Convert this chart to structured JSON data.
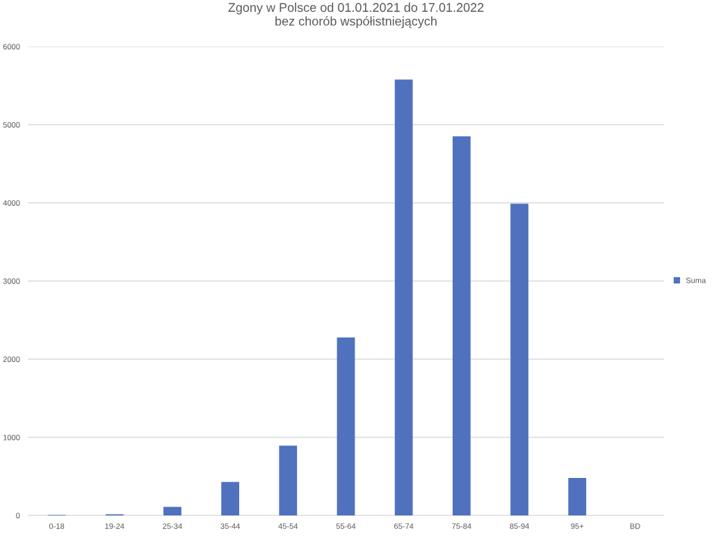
{
  "chart_data": {
    "type": "bar",
    "title": "Zgony w Polsce od 01.01.2021 do 17.01.2022\nbez chorób współistniejących",
    "categories": [
      "0-18",
      "19-24",
      "25-34",
      "35-44",
      "45-54",
      "55-64",
      "65-74",
      "75-84",
      "85-94",
      "95+",
      "BD"
    ],
    "series": [
      {
        "name": "Suma",
        "color": "#4f71be",
        "values": [
          7,
          15,
          110,
          429,
          893,
          2278,
          5578,
          4851,
          3990,
          479,
          0
        ]
      }
    ],
    "ylim": [
      0,
      6000
    ],
    "yticks": [
      0,
      1000,
      2000,
      3000,
      4000,
      5000,
      6000
    ],
    "grid": "y",
    "legend": "right"
  }
}
